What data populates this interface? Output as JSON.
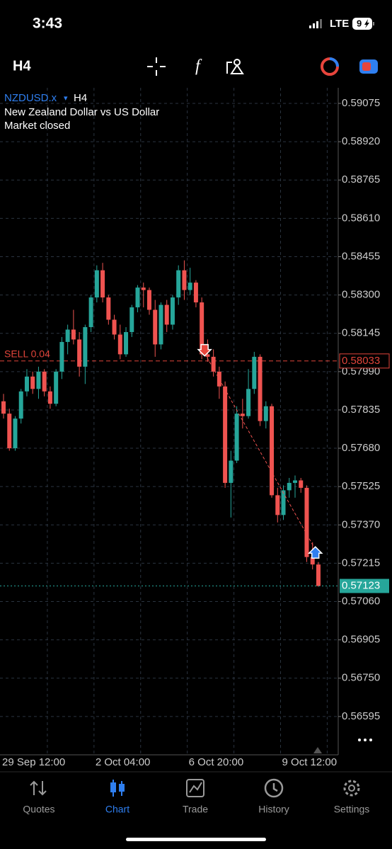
{
  "status_bar": {
    "time": "3:43",
    "network": "LTE",
    "battery": "9"
  },
  "toolbar": {
    "timeframe": "H4"
  },
  "chart_header": {
    "symbol": "NZDUSD.x",
    "menu": "▾",
    "timeframe": "H4",
    "description": "New Zealand Dollar vs US Dollar",
    "status": "Market closed"
  },
  "chart_data": {
    "type": "candlestick",
    "up_color": "#26a69a",
    "down_color": "#ef5350",
    "grid": true,
    "ylim": [
      0.5644,
      0.59138
    ],
    "yticks": [
      {
        "value": 0.59075,
        "label": "0.59075"
      },
      {
        "value": 0.5892,
        "label": "0.58920"
      },
      {
        "value": 0.58765,
        "label": "0.58765"
      },
      {
        "value": 0.5861,
        "label": "0.58610"
      },
      {
        "value": 0.58455,
        "label": "0.58455"
      },
      {
        "value": 0.583,
        "label": "0.58300"
      },
      {
        "value": 0.58145,
        "label": "0.58145"
      },
      {
        "value": 0.5799,
        "label": "0.57990"
      },
      {
        "value": 0.57835,
        "label": "0.57835"
      },
      {
        "value": 0.5768,
        "label": "0.57680"
      },
      {
        "value": 0.57525,
        "label": "0.57525"
      },
      {
        "value": 0.5737,
        "label": "0.57370"
      },
      {
        "value": 0.57215,
        "label": "0.57215"
      },
      {
        "value": 0.5706,
        "label": "0.57060"
      },
      {
        "value": 0.56905,
        "label": "0.56905"
      },
      {
        "value": 0.5675,
        "label": "0.56750"
      },
      {
        "value": 0.56595,
        "label": "0.56595"
      }
    ],
    "categories": [
      "29 Sep 12:00",
      null,
      null,
      null,
      null,
      null,
      null,
      null,
      null,
      null,
      null,
      null,
      null,
      null,
      null,
      null,
      "2 Oct 04:00",
      null,
      null,
      null,
      null,
      null,
      null,
      null,
      null,
      null,
      null,
      null,
      null,
      null,
      null,
      null,
      "6 Oct 20:00",
      null,
      null,
      null,
      null,
      null,
      null,
      null,
      null,
      null,
      null,
      null,
      null,
      null,
      null,
      null,
      "9 Oct 12:00",
      null,
      null,
      null,
      null,
      null,
      null
    ],
    "open": [
      0.5787,
      0.5782,
      0.5768,
      0.578,
      0.5791,
      0.5797,
      0.5792,
      0.5799,
      0.5791,
      0.5786,
      0.5799,
      0.5811,
      0.5816,
      0.5812,
      0.5801,
      0.5817,
      0.5829,
      0.584,
      0.5829,
      0.582,
      0.5814,
      0.5806,
      0.5815,
      0.5825,
      0.5833,
      0.5832,
      0.5824,
      0.581,
      0.5826,
      0.5818,
      0.5829,
      0.584,
      0.5832,
      0.5835,
      0.5827,
      0.5806,
      0.5805,
      0.5799,
      0.5793,
      0.5754,
      0.5763,
      0.5782,
      0.5781,
      0.5792,
      0.5805,
      0.5779,
      0.5785,
      0.5749,
      0.5741,
      0.5751,
      0.5754,
      0.5755,
      0.5752,
      0.5724,
      0.5721
    ],
    "high": [
      0.579,
      0.5784,
      0.5781,
      0.5792,
      0.58,
      0.5799,
      0.5801,
      0.58,
      0.5793,
      0.58,
      0.5813,
      0.5818,
      0.5824,
      0.5815,
      0.5818,
      0.583,
      0.5842,
      0.5843,
      0.583,
      0.5822,
      0.5818,
      0.5817,
      0.5826,
      0.5834,
      0.5835,
      0.5833,
      0.5828,
      0.5827,
      0.5828,
      0.583,
      0.5842,
      0.5844,
      0.5841,
      0.5836,
      0.5829,
      0.5812,
      0.5808,
      0.5801,
      0.5795,
      0.5767,
      0.5785,
      0.5788,
      0.58,
      0.5807,
      0.5806,
      0.5787,
      0.5786,
      0.5752,
      0.5753,
      0.5756,
      0.5757,
      0.5756,
      0.5753,
      0.573,
      0.5722
    ],
    "low": [
      0.578,
      0.5767,
      0.5767,
      0.5778,
      0.5789,
      0.579,
      0.5788,
      0.5789,
      0.5784,
      0.5785,
      0.5796,
      0.5806,
      0.581,
      0.5797,
      0.5794,
      0.5815,
      0.5827,
      0.5827,
      0.5818,
      0.5812,
      0.5804,
      0.5805,
      0.5813,
      0.5823,
      0.5825,
      0.5822,
      0.5805,
      0.5808,
      0.5815,
      0.5816,
      0.5826,
      0.5828,
      0.583,
      0.5825,
      0.5804,
      0.5803,
      0.5797,
      0.5788,
      0.5752,
      0.574,
      0.5762,
      0.5776,
      0.578,
      0.579,
      0.5777,
      0.5776,
      0.5748,
      0.5738,
      0.5739,
      0.5748,
      0.5748,
      0.575,
      0.5722,
      0.5719,
      0.5712
    ],
    "close": [
      0.5782,
      0.5768,
      0.578,
      0.5791,
      0.5797,
      0.5792,
      0.5799,
      0.5791,
      0.5786,
      0.5799,
      0.5811,
      0.5816,
      0.5812,
      0.5801,
      0.5817,
      0.5829,
      0.584,
      0.5829,
      0.582,
      0.5814,
      0.5806,
      0.5815,
      0.5825,
      0.5833,
      0.5832,
      0.5824,
      0.581,
      0.5826,
      0.5818,
      0.5829,
      0.584,
      0.5832,
      0.5835,
      0.5827,
      0.5806,
      0.5805,
      0.5799,
      0.5793,
      0.5754,
      0.5763,
      0.5782,
      0.5781,
      0.5792,
      0.5805,
      0.5779,
      0.5785,
      0.5749,
      0.5741,
      0.5751,
      0.5754,
      0.5755,
      0.5752,
      0.5724,
      0.5721,
      0.57123
    ],
    "order_line": {
      "label": "SELL 0.04",
      "value": 0.58033,
      "color": "#e0443a"
    },
    "bid_line": {
      "value": 0.57123,
      "color": "#26a69a"
    },
    "deal_markers": [
      {
        "type": "sell",
        "x_index": 34,
        "price": 0.58065
      },
      {
        "type": "buy",
        "x_index": 53,
        "price": 0.5727
      }
    ]
  },
  "tab_bar": {
    "tabs": [
      "Quotes",
      "Chart",
      "Trade",
      "History",
      "Settings"
    ],
    "active": 1
  }
}
